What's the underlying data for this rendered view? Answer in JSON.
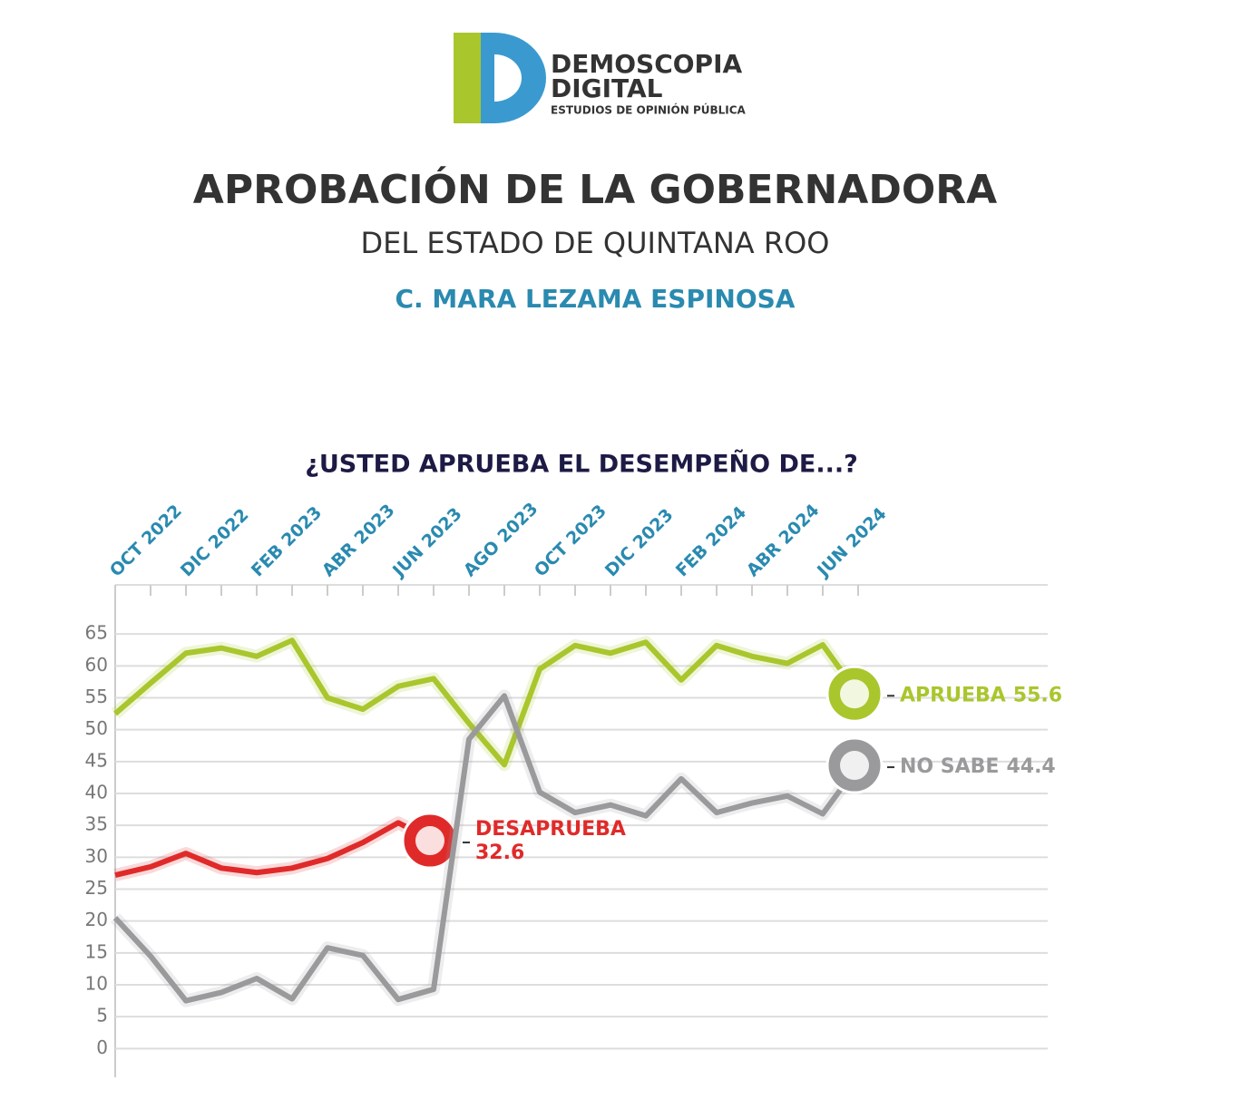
{
  "logo": {
    "name": "DEMOSCOPIA",
    "name2": "DIGITAL",
    "tagline": "ESTUDIOS DE OPINIÓN PÚBLICA"
  },
  "chart_data": {
    "type": "line",
    "title": "APROBACIÓN DE LA GOBERNADORA",
    "subtitle": "DEL ESTADO DE QUINTANA ROO",
    "person": "C. MARA LEZAMA ESPINOSA",
    "question": "¿USTED APRUEBA EL DESEMPEÑO DE...?",
    "categories": [
      "OCT 2022",
      null,
      "DIC 2022",
      null,
      "FEB 2023",
      null,
      "ABR 2023",
      null,
      "JUN 2023",
      null,
      "AGO 2023",
      null,
      "OCT 2023",
      null,
      "DIC 2023",
      null,
      "FEB 2024",
      null,
      "ABR 2024",
      null,
      "JUN 2024",
      null
    ],
    "series": [
      {
        "name": "APRUEBA",
        "color": "#a9c62d",
        "values": [
          52.5,
          57.3,
          62,
          62.8,
          61.5,
          64,
          55,
          53.2,
          56.8,
          58,
          51,
          44.5,
          59.5,
          63.2,
          62,
          63.7,
          57.8,
          63.2,
          61.5,
          60.4,
          63.3,
          55.6
        ]
      },
      {
        "name": "DESAPRUEBA",
        "color": "#e02a2a",
        "values": [
          27.2,
          28.5,
          30.6,
          28.3,
          27.6,
          28.3,
          29.8,
          32.3,
          35.4,
          32.6,
          null,
          null,
          null,
          null,
          null,
          null,
          null,
          null,
          null,
          null,
          null,
          null
        ]
      },
      {
        "name": "NO SABE",
        "color": "#9a9a9c",
        "values": [
          20.5,
          14.5,
          7.5,
          8.8,
          11,
          7.8,
          15.8,
          14.6,
          7.7,
          9.3,
          48.5,
          55.3,
          40.2,
          37,
          38.2,
          36.5,
          42.3,
          37,
          38.5,
          39.6,
          36.8,
          44.4
        ]
      }
    ],
    "ylim": [
      -4.5,
      72.7
    ],
    "yticks": [
      0,
      5,
      10,
      15,
      20,
      25,
      30,
      35,
      40,
      45,
      50,
      55,
      60,
      65
    ],
    "grid": true
  }
}
